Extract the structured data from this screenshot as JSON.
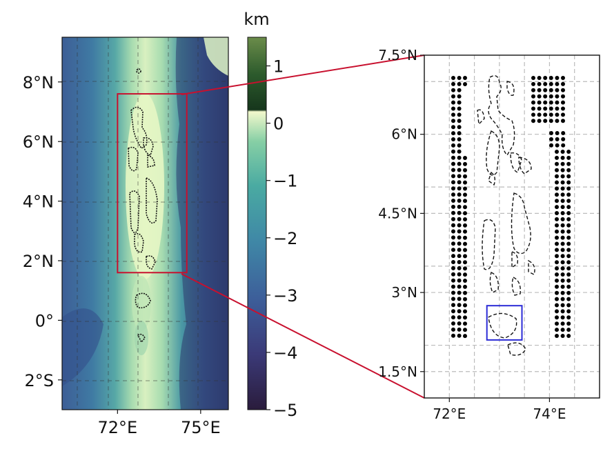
{
  "chart_data": [
    {
      "type": "heatmap",
      "title": "",
      "xlabel": "",
      "ylabel": "",
      "xlim": [
        70.0,
        76.0
      ],
      "ylim": [
        -3.0,
        9.5
      ],
      "x_ticks": [
        {
          "value": 72,
          "label": "72°E"
        },
        {
          "value": 75,
          "label": "75°E"
        }
      ],
      "y_ticks": [
        {
          "value": 8,
          "label": "8°N"
        },
        {
          "value": 6,
          "label": "6°N"
        },
        {
          "value": 4,
          "label": "4°N"
        },
        {
          "value": 2,
          "label": "2°N"
        },
        {
          "value": 0,
          "label": "0°"
        },
        {
          "value": -2,
          "label": "2°S"
        }
      ],
      "grid": true,
      "colorbar": {
        "label": "km",
        "range": [
          -5,
          1.5
        ],
        "ticks": [
          {
            "value": 1,
            "label": "1"
          },
          {
            "value": 0,
            "label": "0"
          },
          {
            "value": -1,
            "label": "−1"
          },
          {
            "value": -2,
            "label": "−2"
          },
          {
            "value": -3,
            "label": "−3"
          },
          {
            "value": -4,
            "label": "−4"
          },
          {
            "value": -5,
            "label": "−5"
          }
        ]
      },
      "highlight_box": {
        "x": [
          72.0,
          74.5
        ],
        "y": [
          1.6,
          7.6
        ],
        "color": "#c8102e"
      }
    },
    {
      "type": "scatter",
      "title": "",
      "xlabel": "",
      "ylabel": "",
      "xlim": [
        71.5,
        75.0
      ],
      "ylim": [
        1.0,
        7.5
      ],
      "x_ticks": [
        {
          "value": 72,
          "label": "72°E"
        },
        {
          "value": 74,
          "label": "74°E"
        }
      ],
      "y_ticks": [
        {
          "value": 7.5,
          "label": "7.5°N"
        },
        {
          "value": 6,
          "label": "6°N"
        },
        {
          "value": 4.5,
          "label": "4.5°N"
        },
        {
          "value": 3,
          "label": "3°N"
        },
        {
          "value": 1.5,
          "label": "1.5°N"
        }
      ],
      "grid": true,
      "highlight_box": {
        "x": [
          72.75,
          73.45
        ],
        "y": [
          2.1,
          2.75
        ],
        "color": "#2b2bd6"
      }
    }
  ]
}
